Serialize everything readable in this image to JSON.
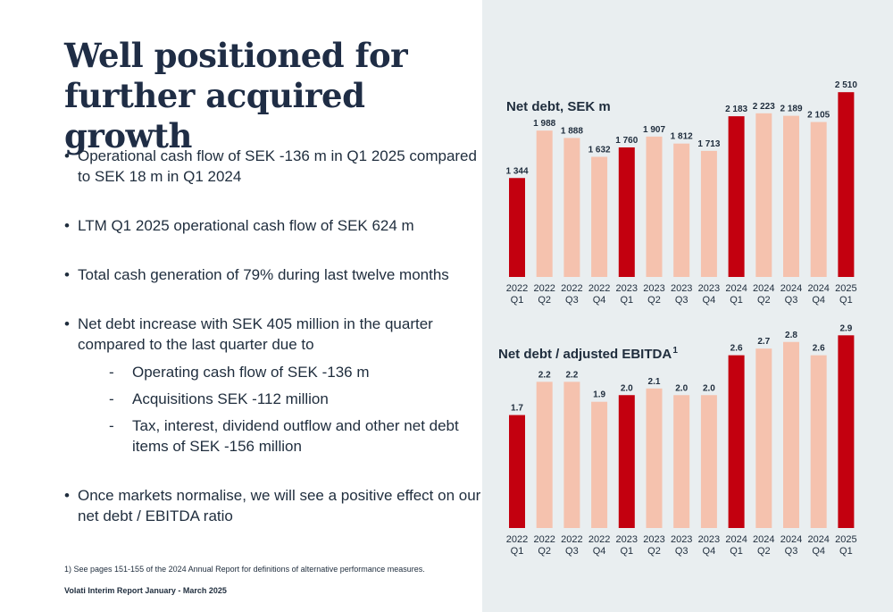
{
  "title": "Well positioned for further acquired growth",
  "bullets": [
    {
      "text": "Operational cash flow of SEK -136 m in Q1 2025 compared to SEK 18 m in Q1 2024",
      "subs": []
    },
    {
      "text": "LTM Q1 2025 operational cash flow of SEK 624 m",
      "subs": []
    },
    {
      "text": "Total cash generation of 79% during last twelve months",
      "subs": []
    },
    {
      "text": "Net debt increase with SEK 405 million in the quarter compared to the last quarter due to",
      "subs": [
        "Operating cash flow of SEK -136 m",
        "Acquisitions SEK -112 million",
        "Tax, interest, dividend outflow and other net debt items of SEK -156 million"
      ]
    },
    {
      "text": "Once markets normalise, we will see a positive effect on our net debt / EBITDA ratio",
      "subs": []
    }
  ],
  "footnote": "1) See pages 151-155 of the 2024 Annual Report for definitions of alternative performance measures.",
  "footer": "Volati Interim Report January - March 2025",
  "colors": {
    "highlight": "#c3000f",
    "normal": "#f5c2ae",
    "panel": "#e9eef0"
  },
  "chart_data": [
    {
      "type": "bar",
      "title": "Net debt, SEK m",
      "title_superscript": "",
      "categories": [
        [
          "2022",
          "Q1"
        ],
        [
          "2022",
          "Q2"
        ],
        [
          "2022",
          "Q3"
        ],
        [
          "2022",
          "Q4"
        ],
        [
          "2023",
          "Q1"
        ],
        [
          "2023",
          "Q2"
        ],
        [
          "2023",
          "Q3"
        ],
        [
          "2023",
          "Q4"
        ],
        [
          "2024",
          "Q1"
        ],
        [
          "2024",
          "Q2"
        ],
        [
          "2024",
          "Q3"
        ],
        [
          "2024",
          "Q4"
        ],
        [
          "2025",
          "Q1"
        ]
      ],
      "values": [
        1344,
        1988,
        1888,
        1632,
        1760,
        1907,
        1812,
        1713,
        2183,
        2223,
        2189,
        2105,
        2510
      ],
      "labels": [
        "1 344",
        "1 988",
        "1 888",
        "1 632",
        "1 760",
        "1 907",
        "1 812",
        "1 713",
        "2 183",
        "2 223",
        "2 189",
        "2 105",
        "2 510"
      ],
      "highlight": [
        true,
        false,
        false,
        false,
        true,
        false,
        false,
        false,
        true,
        false,
        false,
        false,
        true
      ],
      "ylim": [
        0,
        2800
      ]
    },
    {
      "type": "bar",
      "title": "Net debt / adjusted EBITDA",
      "title_superscript": "1",
      "categories": [
        [
          "2022",
          "Q1"
        ],
        [
          "2022",
          "Q2"
        ],
        [
          "2022",
          "Q3"
        ],
        [
          "2022",
          "Q4"
        ],
        [
          "2023",
          "Q1"
        ],
        [
          "2023",
          "Q2"
        ],
        [
          "2023",
          "Q3"
        ],
        [
          "2023",
          "Q4"
        ],
        [
          "2024",
          "Q1"
        ],
        [
          "2024",
          "Q2"
        ],
        [
          "2024",
          "Q3"
        ],
        [
          "2024",
          "Q4"
        ],
        [
          "2025",
          "Q1"
        ]
      ],
      "values": [
        1.7,
        2.2,
        2.2,
        1.9,
        2.0,
        2.1,
        2.0,
        2.0,
        2.6,
        2.7,
        2.8,
        2.6,
        2.9
      ],
      "labels": [
        "1.7",
        "2.2",
        "2.2",
        "1.9",
        "2.0",
        "2.1",
        "2.0",
        "2.0",
        "2.6",
        "2.7",
        "2.8",
        "2.6",
        "2.9"
      ],
      "highlight": [
        true,
        false,
        false,
        false,
        true,
        false,
        false,
        false,
        true,
        false,
        false,
        false,
        true
      ],
      "ylim": [
        0,
        3.2
      ]
    }
  ]
}
